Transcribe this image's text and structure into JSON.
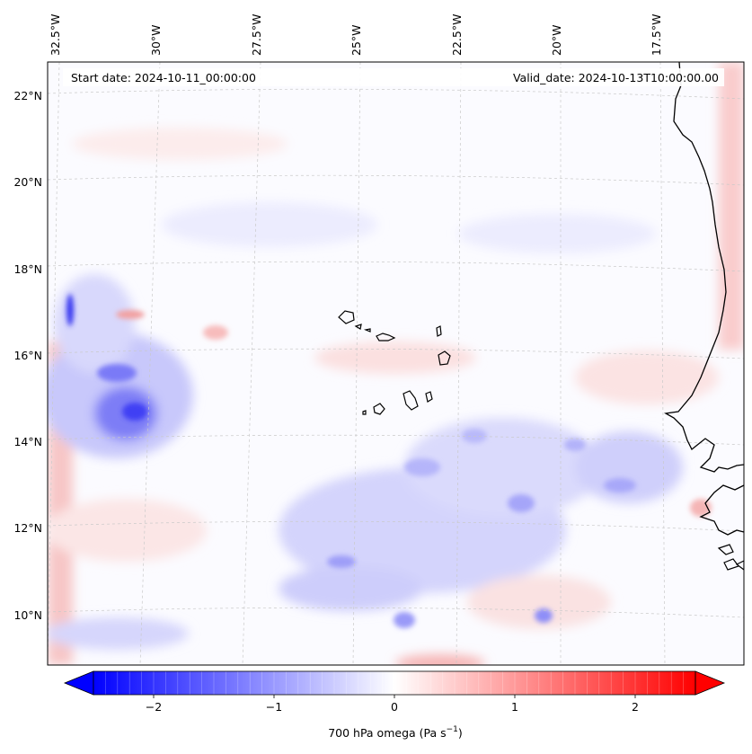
{
  "map": {
    "start_date_text": "Start date: 2024-10-11_00:00:00",
    "valid_date_text": "Valid_date: 2024-10-13T10:00:00.00",
    "lon_labels": [
      "32.5°W",
      "30°W",
      "27.5°W",
      "25°W",
      "22.5°W",
      "20°W",
      "17.5°W"
    ],
    "lat_labels": [
      "22°N",
      "20°N",
      "18°N",
      "16°N",
      "14°N",
      "12°N",
      "10°N"
    ],
    "field_variable": "700 hPa omega",
    "colormap": "bwr",
    "colors": {
      "negative": "#0000ff",
      "zero": "#ffffff",
      "positive": "#ff0000",
      "coastline": "#000000"
    }
  },
  "colorbar": {
    "label_main": "700 hPa omega (Pa s",
    "label_exp": "−1",
    "label_close": ")",
    "ticks": [
      {
        "value": -2,
        "label": "−2"
      },
      {
        "value": -1,
        "label": "−1"
      },
      {
        "value": 0,
        "label": "0"
      },
      {
        "value": 1,
        "label": "1"
      },
      {
        "value": 2,
        "label": "2"
      }
    ],
    "range": [
      -2.5,
      2.5
    ],
    "extend": "both"
  }
}
